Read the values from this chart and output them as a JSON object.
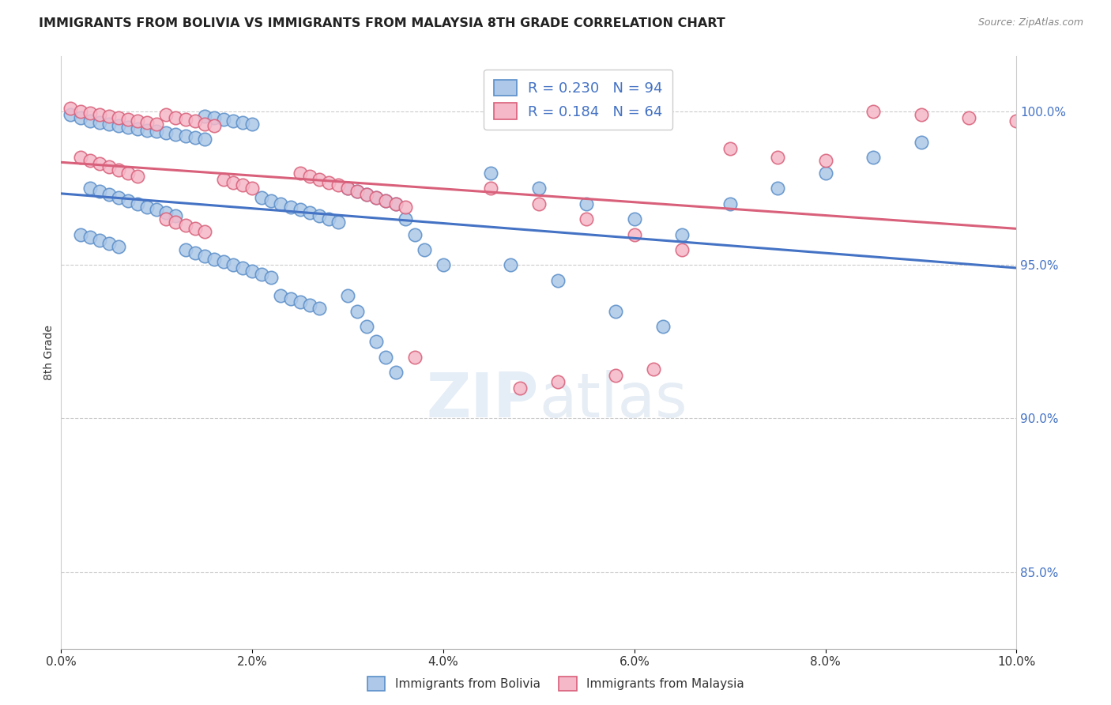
{
  "title": "IMMIGRANTS FROM BOLIVIA VS IMMIGRANTS FROM MALAYSIA 8TH GRADE CORRELATION CHART",
  "source": "Source: ZipAtlas.com",
  "ylabel": "8th Grade",
  "watermark": "ZIPatlas",
  "legend_bolivia": "Immigrants from Bolivia",
  "legend_malaysia": "Immigrants from Malaysia",
  "R_bolivia": 0.23,
  "N_bolivia": 94,
  "R_malaysia": 0.184,
  "N_malaysia": 64,
  "color_bolivia": "#adc8e8",
  "color_malaysia": "#f5b8c8",
  "edge_bolivia": "#5b8fc9",
  "edge_malaysia": "#d9607a",
  "trendline_bolivia": "#4472c4",
  "trendline_malaysia": "#d9607a",
  "xlim": [
    0.0,
    0.1
  ],
  "ylim": [
    0.825,
    1.018
  ],
  "ytick_vals": [
    0.85,
    0.9,
    0.95,
    1.0
  ],
  "ytick_labels": [
    "85.0%",
    "90.0%",
    "95.0%",
    "100.0%"
  ],
  "xtick_vals": [
    0.0,
    0.02,
    0.04,
    0.06,
    0.08,
    0.1
  ],
  "xtick_labels": [
    "0.0%",
    "2.0%",
    "4.0%",
    "6.0%",
    "8.0%",
    "10.0%"
  ]
}
